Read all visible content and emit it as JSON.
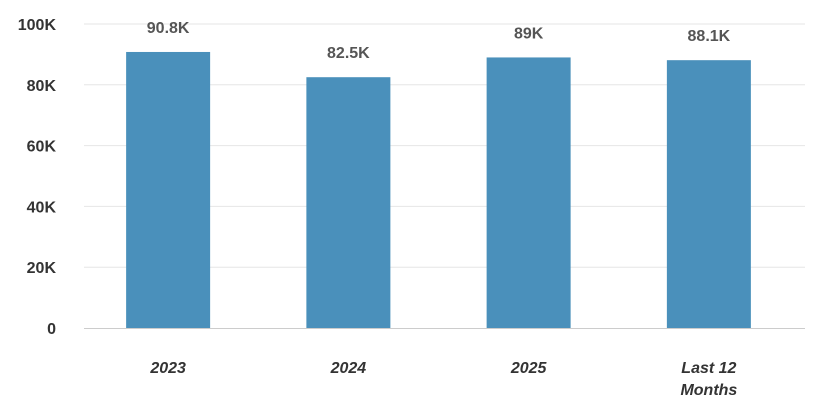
{
  "chart_data": {
    "type": "bar",
    "categories": [
      "2023",
      "2024",
      "2025",
      "Last 12 Months"
    ],
    "category_lines": [
      [
        "2023"
      ],
      [
        "2024"
      ],
      [
        "2025"
      ],
      [
        "Last 12",
        "Months"
      ]
    ],
    "values": [
      90800,
      82500,
      89000,
      88100
    ],
    "data_labels": [
      "90.8K",
      "82.5K",
      "89K",
      "88.1K"
    ],
    "yticks": [
      0,
      20000,
      40000,
      60000,
      80000,
      100000
    ],
    "ytick_labels": [
      "0",
      "20K",
      "40K",
      "60K",
      "80K",
      "100K"
    ],
    "ylim": [
      0,
      100000
    ],
    "grid": true,
    "legend": "none",
    "colors": {
      "bar": "#4a90bb"
    }
  }
}
